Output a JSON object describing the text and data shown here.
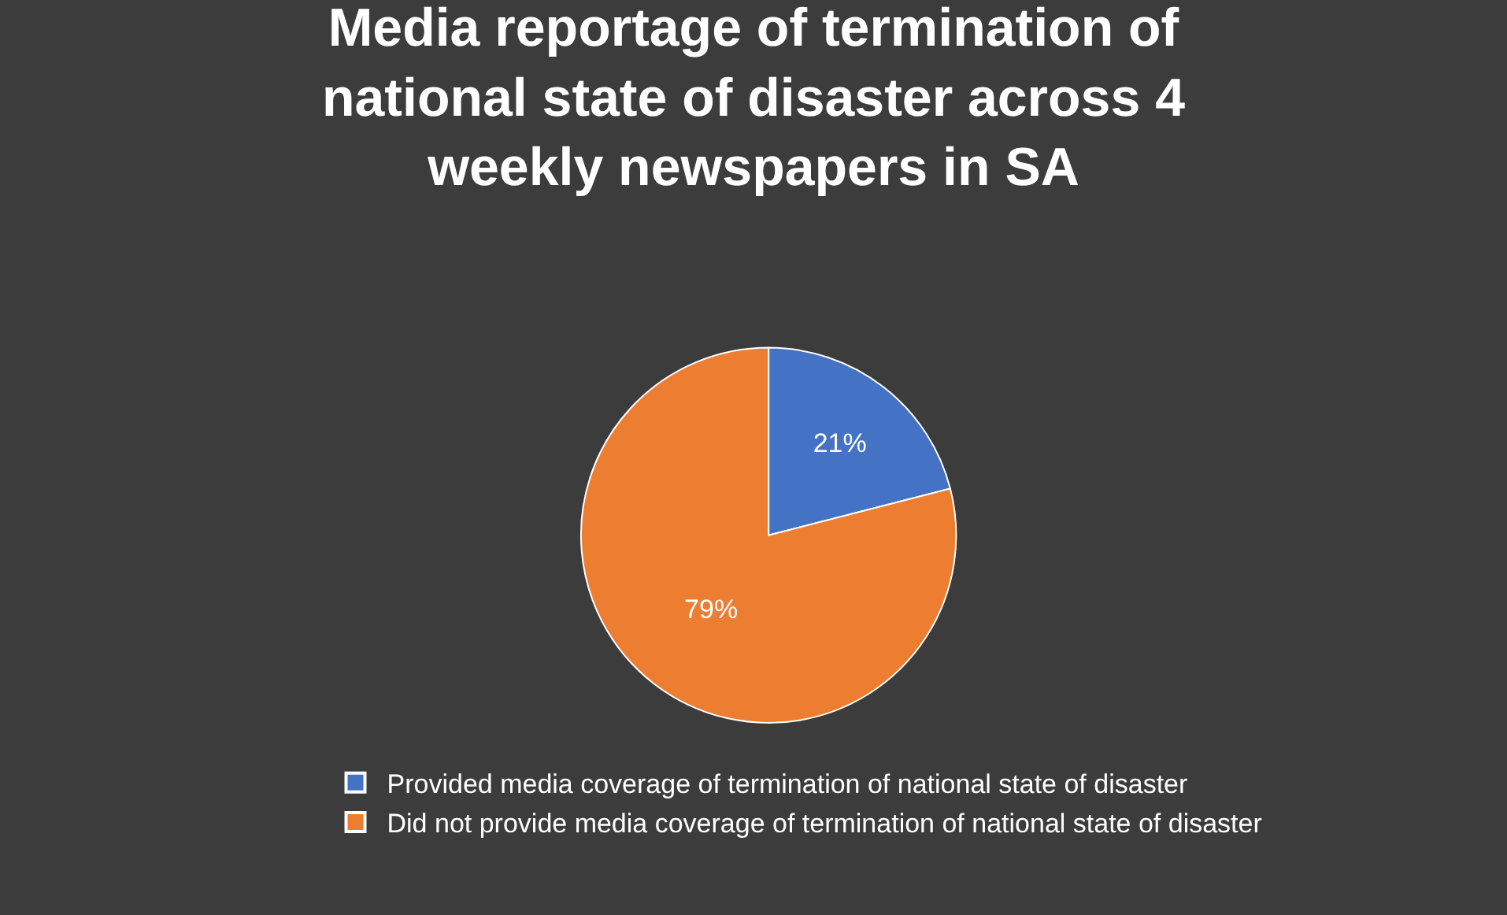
{
  "chart_data": {
    "type": "pie",
    "title": "Media reportage of termination of national state of disaster across 4 weekly newspapers in SA",
    "categories": [
      "Provided media coverage of termination of national state of disaster",
      "Did not provide media coverage of termination of national state of disaster"
    ],
    "values": [
      21,
      79
    ],
    "value_labels": [
      "21%",
      "79%"
    ],
    "colors": [
      "#4472c4",
      "#ed7d31"
    ],
    "legend": "bottom"
  }
}
